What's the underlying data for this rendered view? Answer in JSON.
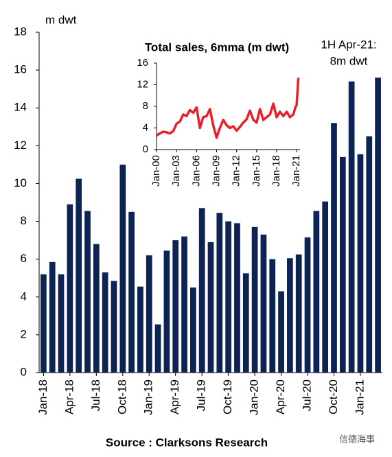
{
  "chart_data": [
    {
      "type": "bar",
      "y_label": "m dwt",
      "annotation": [
        "1H Apr-21:",
        "8m dwt"
      ],
      "source": "Source : Clarksons Research",
      "watermark": "信德海事",
      "color": "#0d2354",
      "categories": [
        "Jan-18",
        null,
        null,
        "Apr-18",
        null,
        null,
        "Jul-18",
        null,
        null,
        "Oct-18",
        null,
        null,
        "Jan-19",
        null,
        null,
        "Apr-19",
        null,
        null,
        "Jul-19",
        null,
        null,
        "Oct-19",
        null,
        null,
        "Jan-20",
        null,
        null,
        "Apr-20",
        null,
        null,
        "Jul-20",
        null,
        null,
        "Oct-20",
        null,
        null,
        "Jan-21",
        null,
        null
      ],
      "values": [
        5.2,
        5.85,
        5.2,
        8.9,
        10.25,
        8.55,
        6.8,
        5.3,
        4.85,
        11.0,
        8.5,
        4.55,
        6.2,
        2.55,
        6.45,
        7.0,
        7.2,
        4.5,
        8.7,
        6.9,
        8.45,
        8.0,
        7.9,
        5.25,
        7.7,
        7.3,
        6.0,
        4.3,
        6.05,
        6.25,
        7.15,
        8.55,
        9.05,
        13.2,
        11.4,
        15.4,
        11.55,
        12.5,
        15.6
      ],
      "ylim": [
        0,
        18
      ],
      "yticks": [
        0,
        2,
        4,
        6,
        8,
        10,
        12,
        14,
        16,
        18
      ]
    },
    {
      "type": "line",
      "title": "Total sales, 6mma (m dwt)",
      "x": [
        2000,
        2000.5,
        2001,
        2001.5,
        2002,
        2002.5,
        2003,
        2003.5,
        2004,
        2004.5,
        2005,
        2005.5,
        2006,
        2006.5,
        2007,
        2007.5,
        2008,
        2008.5,
        2009,
        2009.5,
        2010,
        2010.5,
        2011,
        2011.5,
        2012,
        2012.5,
        2013,
        2013.5,
        2014,
        2014.5,
        2015,
        2015.5,
        2016,
        2016.5,
        2017,
        2017.5,
        2018,
        2018.5,
        2019,
        2019.5,
        2020,
        2020.5,
        2020.8,
        2021,
        2021.25
      ],
      "series": [
        {
          "name": "Total sales",
          "color": "#e8202a",
          "values": [
            2.6,
            3.0,
            3.3,
            3.2,
            3.0,
            3.4,
            4.8,
            5.2,
            6.5,
            6.2,
            7.3,
            6.8,
            7.8,
            4.0,
            6.0,
            6.2,
            7.5,
            4.5,
            2.2,
            4.0,
            5.5,
            4.5,
            4.0,
            4.3,
            3.5,
            4.2,
            5.0,
            5.6,
            7.2,
            5.5,
            5.0,
            7.5,
            5.5,
            6.0,
            6.5,
            8.5,
            6.0,
            7.0,
            6.2,
            7.0,
            6.0,
            6.5,
            7.8,
            8.2,
            13.3
          ]
        }
      ],
      "xlim": [
        2000,
        2021.5
      ],
      "xticks": [
        {
          "value": 2000,
          "label": "Jan-00"
        },
        {
          "value": 2003,
          "label": "Jan-03"
        },
        {
          "value": 2006,
          "label": "Jan-06"
        },
        {
          "value": 2009,
          "label": "Jan-09"
        },
        {
          "value": 2012,
          "label": "Jan-12"
        },
        {
          "value": 2015,
          "label": "Jan-15"
        },
        {
          "value": 2018,
          "label": "Jan-18"
        },
        {
          "value": 2021,
          "label": "Jan-21"
        }
      ],
      "ylim": [
        0,
        16
      ],
      "yticks": [
        0,
        4,
        8,
        12,
        16
      ]
    }
  ]
}
